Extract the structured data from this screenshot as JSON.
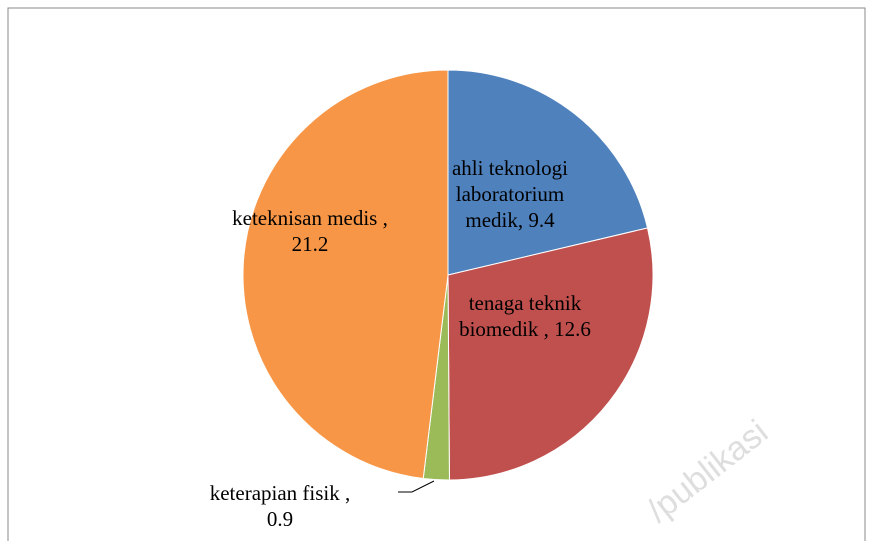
{
  "chart_data": {
    "type": "pie",
    "values": [
      9.4,
      12.6,
      0.9,
      21.2
    ],
    "value_labels": [
      "ahli teknologi laboratorium medik, 9.4",
      "tenaga teknik biomedik , 12.6",
      "keterapian fisik , 0.9",
      "keteknisan medis , 21.2"
    ],
    "colors": [
      "#4f81bd",
      "#c0504d",
      "#9bbb59",
      "#f79646"
    ],
    "watermark": "/publikasi"
  }
}
